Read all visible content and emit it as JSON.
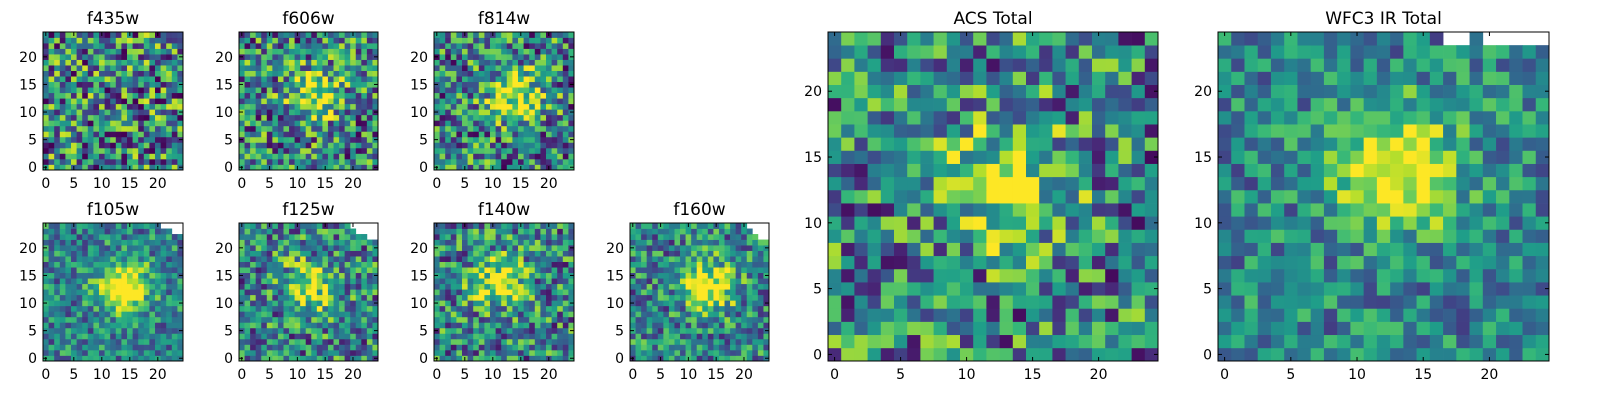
{
  "chart_data": [
    {
      "type": "heatmap",
      "title": "f435w",
      "xticks": [
        0,
        5,
        10,
        15,
        20
      ],
      "yticks": [
        0,
        5,
        10,
        15,
        20
      ],
      "xlim": [
        0,
        25
      ],
      "ylim": [
        0,
        25
      ],
      "grid": false,
      "colormap": "viridis",
      "source_peak": null,
      "contrast": 0.0,
      "noise": 1.0,
      "blank_pixels": []
    },
    {
      "type": "heatmap",
      "title": "f606w",
      "xticks": [
        0,
        5,
        10,
        15,
        20
      ],
      "yticks": [
        0,
        5,
        10,
        15,
        20
      ],
      "xlim": [
        0,
        25
      ],
      "ylim": [
        0,
        25
      ],
      "grid": false,
      "colormap": "viridis",
      "source_peak": [
        13,
        13
      ],
      "contrast": 0.55,
      "noise": 0.9,
      "blank_pixels": []
    },
    {
      "type": "heatmap",
      "title": "f814w",
      "xticks": [
        0,
        5,
        10,
        15,
        20
      ],
      "yticks": [
        0,
        5,
        10,
        15,
        20
      ],
      "xlim": [
        0,
        25
      ],
      "ylim": [
        0,
        25
      ],
      "grid": false,
      "colormap": "viridis",
      "source_peak": [
        14,
        13
      ],
      "contrast": 0.6,
      "noise": 0.9,
      "blank_pixels": []
    },
    {
      "type": "heatmap",
      "title": "f105w",
      "xticks": [
        0,
        5,
        10,
        15,
        20
      ],
      "yticks": [
        0,
        5,
        10,
        15,
        20
      ],
      "xlim": [
        0,
        25
      ],
      "ylim": [
        0,
        25
      ],
      "grid": false,
      "colormap": "viridis",
      "source_peak": [
        14,
        13
      ],
      "contrast": 0.7,
      "noise": 0.6,
      "blank_pixels": [
        [
          21,
          24
        ],
        [
          22,
          24
        ],
        [
          23,
          24
        ],
        [
          24,
          24
        ],
        [
          23,
          23
        ],
        [
          24,
          23
        ]
      ]
    },
    {
      "type": "heatmap",
      "title": "f125w",
      "xticks": [
        0,
        5,
        10,
        15,
        20
      ],
      "yticks": [
        0,
        5,
        10,
        15,
        20
      ],
      "xlim": [
        0,
        25
      ],
      "ylim": [
        0,
        25
      ],
      "grid": false,
      "colormap": "viridis",
      "source_peak": [
        12,
        13
      ],
      "contrast": 0.5,
      "noise": 0.8,
      "blank_pixels": [
        [
          20,
          24
        ],
        [
          21,
          24
        ],
        [
          22,
          24
        ],
        [
          23,
          24
        ],
        [
          24,
          24
        ],
        [
          21,
          23
        ],
        [
          22,
          23
        ],
        [
          23,
          23
        ],
        [
          24,
          23
        ],
        [
          23,
          22
        ],
        [
          24,
          22
        ]
      ]
    },
    {
      "type": "heatmap",
      "title": "f140w",
      "xticks": [
        0,
        5,
        10,
        15,
        20
      ],
      "yticks": [
        0,
        5,
        10,
        15,
        20
      ],
      "xlim": [
        0,
        25
      ],
      "ylim": [
        0,
        25
      ],
      "grid": false,
      "colormap": "viridis",
      "source_peak": [
        11,
        14
      ],
      "contrast": 0.55,
      "noise": 0.8,
      "blank_pixels": []
    },
    {
      "type": "heatmap",
      "title": "f160w",
      "xticks": [
        0,
        5,
        10,
        15,
        20
      ],
      "yticks": [
        0,
        5,
        10,
        15,
        20
      ],
      "xlim": [
        0,
        25
      ],
      "ylim": [
        0,
        25
      ],
      "grid": false,
      "colormap": "viridis",
      "source_peak": [
        14,
        13
      ],
      "contrast": 0.6,
      "noise": 0.7,
      "blank_pixels": [
        [
          21,
          24
        ],
        [
          22,
          24
        ],
        [
          23,
          24
        ],
        [
          24,
          24
        ],
        [
          22,
          23
        ],
        [
          23,
          23
        ],
        [
          24,
          23
        ],
        [
          23,
          22
        ],
        [
          24,
          22
        ]
      ]
    },
    {
      "type": "heatmap",
      "title": "ACS Total",
      "xticks": [
        0,
        5,
        10,
        15,
        20
      ],
      "yticks": [
        0,
        5,
        10,
        15,
        20
      ],
      "xlim": [
        0,
        25
      ],
      "ylim": [
        0,
        25
      ],
      "grid": false,
      "colormap": "viridis",
      "source_peak": [
        13,
        13
      ],
      "contrast": 0.55,
      "noise": 0.85,
      "blank_pixels": []
    },
    {
      "type": "heatmap",
      "title": "WFC3 IR Total",
      "xticks": [
        0,
        5,
        10,
        15,
        20
      ],
      "yticks": [
        0,
        5,
        10,
        15,
        20
      ],
      "xlim": [
        0,
        25
      ],
      "ylim": [
        0,
        25
      ],
      "grid": false,
      "colormap": "viridis",
      "source_peak": [
        13,
        14
      ],
      "contrast": 0.7,
      "noise": 0.55,
      "blank_pixels": [
        [
          17,
          24
        ],
        [
          18,
          24
        ],
        [
          20,
          24
        ],
        [
          21,
          24
        ],
        [
          22,
          24
        ],
        [
          23,
          24
        ],
        [
          24,
          24
        ]
      ]
    }
  ]
}
